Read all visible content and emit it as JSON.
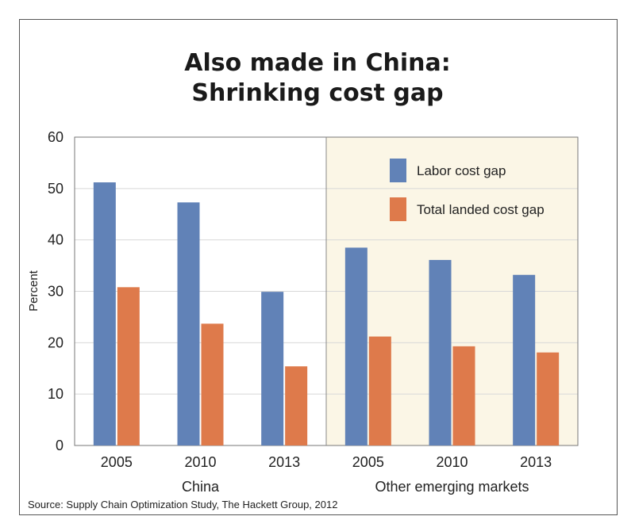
{
  "chart_data": {
    "type": "bar",
    "title": [
      "Also made in China:",
      "Shrinking cost gap"
    ],
    "ylabel": "Percent",
    "ylim": [
      0,
      60
    ],
    "yticks": [
      0,
      10,
      20,
      30,
      40,
      50,
      60
    ],
    "grid": true,
    "legend_position": "top-right",
    "categories": [
      "2005",
      "2010",
      "2013",
      "2005",
      "2010",
      "2013"
    ],
    "groups": [
      {
        "label": "China",
        "categories": [
          "2005",
          "2010",
          "2013"
        ]
      },
      {
        "label": "Other emerging markets",
        "categories": [
          "2005",
          "2010",
          "2013"
        ]
      }
    ],
    "series": [
      {
        "name": "Labor cost gap",
        "color": "#6182b7",
        "values": [
          51.2,
          47.3,
          29.9,
          38.5,
          36.1,
          33.2
        ]
      },
      {
        "name": "Total landed cost gap",
        "color": "#de7a4b",
        "values": [
          30.8,
          23.7,
          15.4,
          21.2,
          19.3,
          18.1
        ]
      }
    ],
    "highlight_region_color": "#fbf6e6",
    "source": "Source: Supply Chain Optimization Study, The Hackett Group, 2012"
  }
}
